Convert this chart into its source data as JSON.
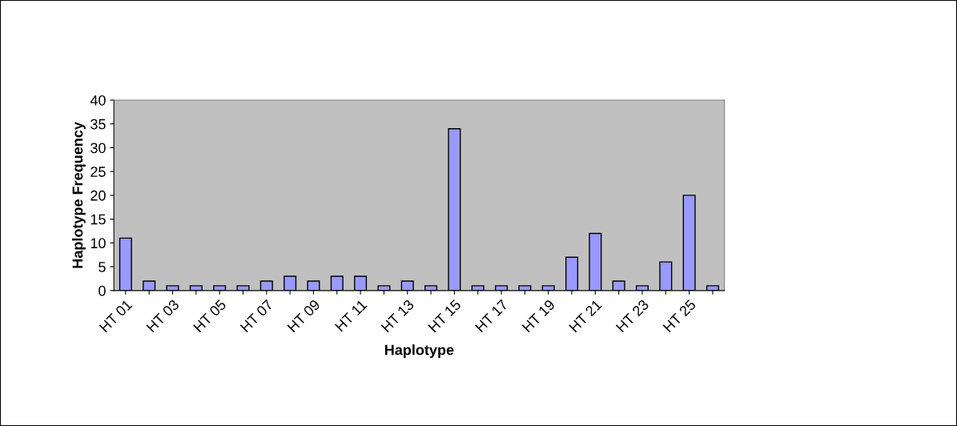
{
  "chart_data": {
    "type": "bar",
    "xlabel": "Haplotype",
    "ylabel": "Haplotype Frequency",
    "categories": [
      "HT 01",
      null,
      "HT 03",
      null,
      "HT 05",
      null,
      "HT 07",
      null,
      "HT 09",
      null,
      "HT 11",
      null,
      "HT 13",
      null,
      "HT 15",
      null,
      "HT 17",
      null,
      "HT 19",
      null,
      "HT 21",
      null,
      "HT 23",
      null,
      "HT 25",
      null
    ],
    "values": [
      11,
      2,
      1,
      1,
      1,
      1,
      2,
      3,
      2,
      3,
      3,
      1,
      2,
      1,
      34,
      1,
      1,
      1,
      1,
      7,
      12,
      2,
      1,
      6,
      20,
      1
    ],
    "color": "#9999ff",
    "ylim": [
      0,
      40
    ],
    "yticks": [
      0,
      5,
      10,
      15,
      20,
      25,
      30,
      35,
      40
    ],
    "grid": false,
    "legend": false
  }
}
